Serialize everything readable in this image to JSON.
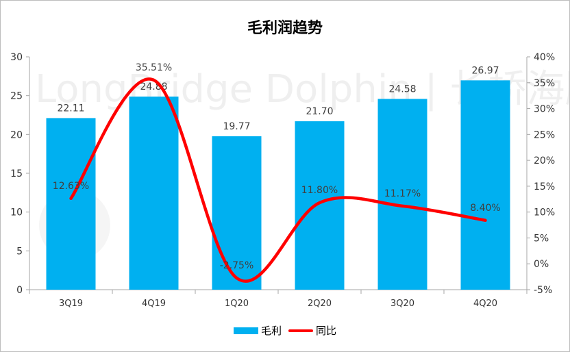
{
  "chart_data": {
    "type": "bar",
    "title": "毛利润趋势",
    "categories": [
      "3Q19",
      "4Q19",
      "1Q20",
      "2Q20",
      "3Q20",
      "4Q20"
    ],
    "series": [
      {
        "name": "毛利",
        "type": "bar",
        "axis": "left",
        "color": "#00b0f0",
        "values": [
          22.11,
          24.88,
          19.77,
          21.7,
          24.58,
          26.97
        ],
        "labels": [
          "22.11",
          "24.88",
          "19.77",
          "21.70",
          "24.58",
          "26.97"
        ]
      },
      {
        "name": "同比",
        "type": "line",
        "smooth": true,
        "axis": "right",
        "color": "#ff0000",
        "values": [
          12.63,
          35.51,
          -2.75,
          11.8,
          11.17,
          8.4
        ],
        "labels": [
          "12.63%",
          "35.51%",
          "-2.75%",
          "11.80%",
          "11.17%",
          "8.40%"
        ]
      }
    ],
    "y_left": {
      "ylim": [
        0,
        30
      ],
      "ticks": [
        "0",
        "5",
        "10",
        "15",
        "20",
        "25",
        "30"
      ]
    },
    "y_right": {
      "ylim": [
        -5,
        40
      ],
      "ticks": [
        "-5%",
        "0%",
        "5%",
        "10%",
        "15%",
        "20%",
        "25%",
        "30%",
        "35%",
        "40%"
      ]
    },
    "xlabel": "",
    "ylabel": "",
    "grid": false,
    "legend_position": "bottom",
    "watermark": "LongBridge Dolphin | 长桥海豚研"
  }
}
